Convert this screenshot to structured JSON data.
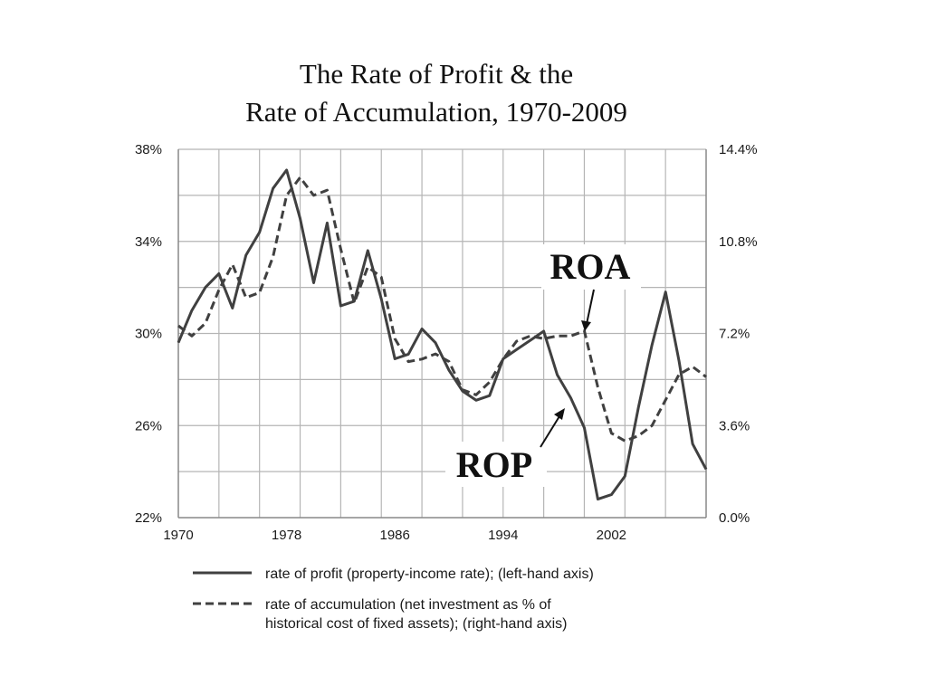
{
  "title_line1": "The Rate of Profit & the",
  "title_line2": "Rate of Accumulation, 1970-2009",
  "chart_data": {
    "type": "line",
    "x_range": [
      1970,
      2009
    ],
    "x_ticks": [
      1970,
      1978,
      1986,
      1994,
      2002
    ],
    "y_left": {
      "range": [
        22,
        38
      ],
      "ticks": [
        22,
        26,
        30,
        34,
        38
      ],
      "tick_labels": [
        "22%",
        "26%",
        "30%",
        "34%",
        "38%"
      ]
    },
    "y_right": {
      "range": [
        0,
        14.4
      ],
      "ticks": [
        0,
        3.6,
        7.2,
        10.8,
        14.4
      ],
      "tick_labels": [
        "0.0%",
        "3.6%",
        "7.2%",
        "10.8%",
        "14.4%"
      ]
    },
    "grid": true,
    "legend_position": "bottom",
    "series": [
      {
        "name": "rate of profit (property-income rate); (left-hand axis)",
        "axis": "left",
        "style": "solid",
        "color": "#404040",
        "x": [
          1970,
          1971,
          1972,
          1973,
          1974,
          1975,
          1976,
          1977,
          1978,
          1979,
          1980,
          1981,
          1982,
          1983,
          1984,
          1985,
          1986,
          1987,
          1988,
          1989,
          1990,
          1991,
          1992,
          1993,
          1994,
          1995,
          1996,
          1997,
          1998,
          1999,
          2000,
          2001,
          2002,
          2003,
          2004,
          2005,
          2006,
          2007,
          2008,
          2009
        ],
        "values": [
          29.6,
          31.0,
          32.0,
          32.6,
          31.1,
          33.4,
          34.4,
          36.3,
          37.1,
          35.0,
          32.2,
          34.8,
          31.2,
          31.4,
          33.6,
          31.5,
          28.9,
          29.1,
          30.2,
          29.6,
          28.4,
          27.5,
          27.1,
          27.3,
          28.9,
          29.3,
          29.7,
          30.1,
          28.2,
          27.2,
          25.9,
          22.8,
          23.0,
          23.8,
          26.8,
          29.5,
          31.8,
          28.8,
          25.2,
          24.1
        ]
      },
      {
        "name": "rate of accumulation (net investment as % of historical cost of fixed assets); (right-hand axis)",
        "axis": "right",
        "style": "dashed",
        "color": "#404040",
        "x": [
          1970,
          1971,
          1972,
          1973,
          1974,
          1975,
          1976,
          1977,
          1978,
          1979,
          1980,
          1981,
          1982,
          1983,
          1984,
          1985,
          1986,
          1987,
          1988,
          1989,
          1990,
          1991,
          1992,
          1993,
          1994,
          1995,
          1996,
          1997,
          1998,
          1999,
          2000,
          2001,
          2002,
          2003,
          2004,
          2005,
          2006,
          2007,
          2008,
          2009
        ],
        "values": [
          7.5,
          7.1,
          7.6,
          8.9,
          9.9,
          8.6,
          8.8,
          10.2,
          12.6,
          13.3,
          12.6,
          12.8,
          10.5,
          8.4,
          9.8,
          9.4,
          7.0,
          6.1,
          6.2,
          6.4,
          6.1,
          5.0,
          4.8,
          5.3,
          6.2,
          6.9,
          7.1,
          7.0,
          7.1,
          7.1,
          7.3,
          5.1,
          3.3,
          3.0,
          3.2,
          3.6,
          4.6,
          5.6,
          5.9,
          5.5
        ]
      }
    ],
    "legend_entries": {
      "profit": "rate of profit (property-income rate); (left-hand axis)",
      "accum_line1": "rate of accumulation (net investment as % of",
      "accum_line2": "historical cost of fixed assets); (right-hand axis)"
    },
    "annotations": [
      {
        "text": "ROA"
      },
      {
        "text": "ROP"
      }
    ]
  }
}
